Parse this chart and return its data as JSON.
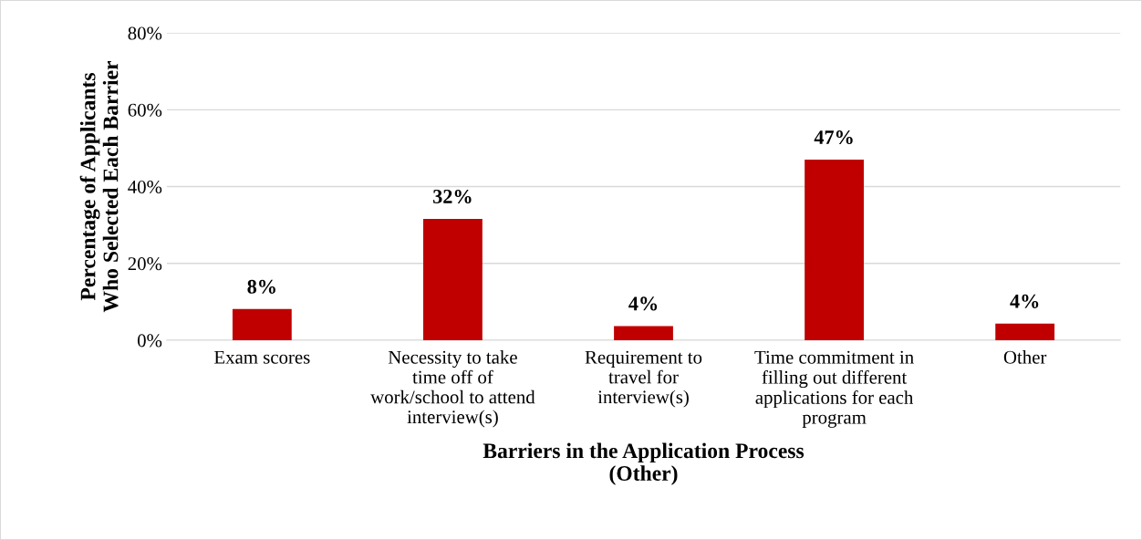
{
  "chart_data": {
    "type": "bar",
    "xlabel": "Barriers in the Application Process\n(Other)",
    "ylabel": "Percentage of Applicants\nWho Selected Each Barrier",
    "categories": [
      "Exam scores",
      "Necessity to take\ntime off of\nwork/school to attend\ninterview(s)",
      "Requirement to\ntravel for\ninterview(s)",
      "Time commitment in\nfilling out different\napplications for each\nprogram",
      "Other"
    ],
    "values": [
      8.1,
      31.6,
      3.7,
      47,
      4.3
    ],
    "value_labels": [
      "8%",
      "32%",
      "4%",
      "47%",
      "4%"
    ],
    "color": "#c00000",
    "ylim": [
      0,
      80
    ],
    "yticks": [
      {
        "value": 0,
        "label": "0%"
      },
      {
        "value": 20,
        "label": "20%"
      },
      {
        "value": 40,
        "label": "40%"
      },
      {
        "value": 60,
        "label": "60%"
      },
      {
        "value": 80,
        "label": "80%"
      }
    ],
    "grid": "y"
  }
}
